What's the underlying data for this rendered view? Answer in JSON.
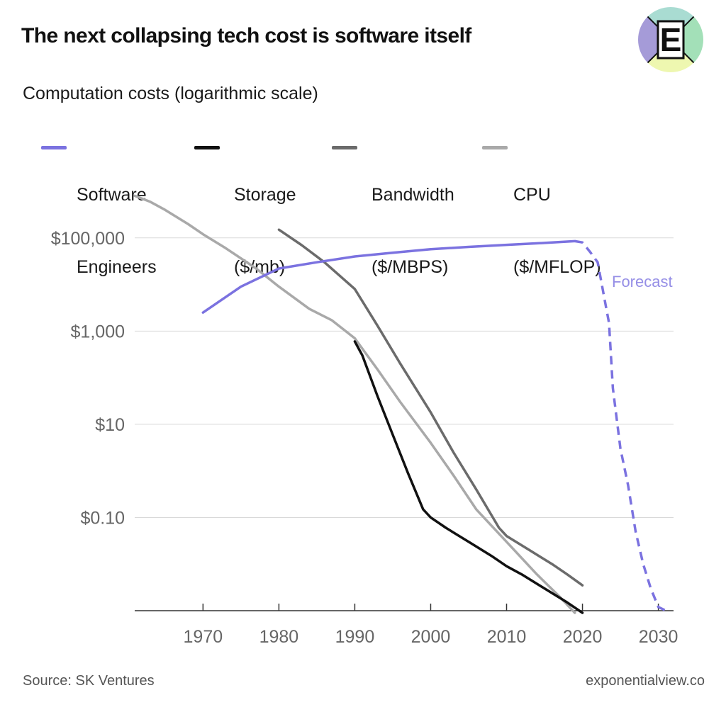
{
  "header": {
    "title": "The next collapsing tech cost is software itself",
    "logo_letter": "E"
  },
  "subtitle": "Computation costs (logarithmic scale)",
  "footer": {
    "source": "Source: SK Ventures",
    "site": "exponentialview.co"
  },
  "colors": {
    "software_engineers": "#7b72e0",
    "storage": "#111111",
    "bandwidth": "#6b6b6b",
    "cpu": "#a9a9a9",
    "grid": "#d9d9d9",
    "axis": "#333333",
    "tick_text": "#666666"
  },
  "chart_data": {
    "type": "line",
    "title": "",
    "subtitle": "Computation costs (logarithmic scale)",
    "xlabel": "",
    "ylabel": "",
    "y_scale": "log",
    "xlim": [
      1961,
      2032
    ],
    "ylim": [
      0.001,
      1000000
    ],
    "x_ticks": [
      1970,
      1980,
      1990,
      2000,
      2010,
      2020,
      2030
    ],
    "x_tick_labels": [
      "1970",
      "1980",
      "1990",
      "2000",
      "2010",
      "2020",
      "2030"
    ],
    "y_ticks": [
      0.1,
      10,
      1000,
      100000
    ],
    "y_tick_labels": [
      "$0.10",
      "$10",
      "$1,000",
      "$100,000"
    ],
    "grid": "horizontal",
    "legend_position": "top",
    "annotation": "Forecast",
    "series": [
      {
        "name": "Software Engineers",
        "legend_lines": [
          "Software",
          "Engineers"
        ],
        "color_key": "software_engineers",
        "style": "solid",
        "points": [
          [
            1970,
            2500
          ],
          [
            1975,
            9000
          ],
          [
            1980,
            22000
          ],
          [
            1985,
            30000
          ],
          [
            1990,
            40000
          ],
          [
            1995,
            48000
          ],
          [
            2000,
            57000
          ],
          [
            2005,
            64000
          ],
          [
            2010,
            71000
          ],
          [
            2015,
            78000
          ],
          [
            2019,
            85000
          ]
        ]
      },
      {
        "name": "Software Engineers (forecast)",
        "color_key": "software_engineers",
        "style": "dashed",
        "points": [
          [
            2019,
            85000
          ],
          [
            2020,
            80000
          ],
          [
            2021,
            50000
          ],
          [
            2022,
            30000
          ],
          [
            2023,
            4000
          ],
          [
            2023.5,
            1500
          ],
          [
            2024,
            60
          ],
          [
            2025,
            3
          ],
          [
            2026,
            0.5
          ],
          [
            2027,
            0.05
          ],
          [
            2028,
            0.01
          ],
          [
            2029,
            0.003
          ],
          [
            2030,
            0.0012
          ],
          [
            2031,
            0.001
          ]
        ]
      },
      {
        "name": "Storage",
        "legend_lines": [
          "Storage",
          "($/mb)"
        ],
        "color_key": "storage",
        "style": "solid",
        "points": [
          [
            1990,
            600
          ],
          [
            1991,
            300
          ],
          [
            1993,
            40
          ],
          [
            1995,
            6
          ],
          [
            1997,
            0.9
          ],
          [
            1999,
            0.15
          ],
          [
            2000,
            0.1
          ],
          [
            2002,
            0.06
          ],
          [
            2005,
            0.03
          ],
          [
            2008,
            0.015
          ],
          [
            2010,
            0.009
          ],
          [
            2012,
            0.006
          ],
          [
            2015,
            0.003
          ],
          [
            2018,
            0.0015
          ],
          [
            2020,
            0.0009
          ]
        ]
      },
      {
        "name": "Bandwidth",
        "legend_lines": [
          "Bandwidth",
          "($/MBPS)"
        ],
        "color_key": "bandwidth",
        "style": "solid",
        "points": [
          [
            1980,
            150000
          ],
          [
            1983,
            70000
          ],
          [
            1986,
            30000
          ],
          [
            1990,
            8000
          ],
          [
            1993,
            1300
          ],
          [
            1996,
            200
          ],
          [
            2000,
            18
          ],
          [
            2003,
            2.5
          ],
          [
            2006,
            0.4
          ],
          [
            2009,
            0.06
          ],
          [
            2010,
            0.04
          ],
          [
            2013,
            0.02
          ],
          [
            2016,
            0.01
          ],
          [
            2018,
            0.006
          ],
          [
            2020,
            0.0035
          ]
        ]
      },
      {
        "name": "CPU",
        "legend_lines": [
          "CPU",
          "($/MFLOP)"
        ],
        "color_key": "cpu",
        "style": "solid",
        "points": [
          [
            1961,
            800000
          ],
          [
            1963,
            600000
          ],
          [
            1965,
            400000
          ],
          [
            1968,
            200000
          ],
          [
            1970,
            120000
          ],
          [
            1973,
            60000
          ],
          [
            1977,
            22000
          ],
          [
            1980,
            9000
          ],
          [
            1984,
            3000
          ],
          [
            1987,
            1700
          ],
          [
            1990,
            700
          ],
          [
            1993,
            150
          ],
          [
            1996,
            30
          ],
          [
            2000,
            4
          ],
          [
            2003,
            0.8
          ],
          [
            2006,
            0.15
          ],
          [
            2010,
            0.03
          ],
          [
            2014,
            0.006
          ],
          [
            2017,
            0.002
          ],
          [
            2019,
            0.0009
          ]
        ]
      }
    ]
  }
}
